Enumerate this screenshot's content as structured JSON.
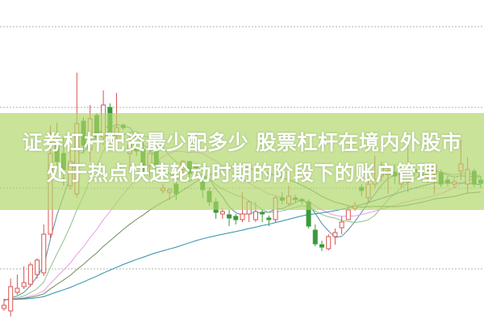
{
  "title": {
    "line1": "证券杠杆配资最少配多少 股票杠杆在境内外股市",
    "line2": "处于热点快速轮动时期的阶段下的账户管理"
  },
  "colors": {
    "up": "#d9534f",
    "down": "#3a9a3a",
    "banner": "#afd669",
    "grid": "#b0b0b0",
    "ma": [
      "#5a8fa0",
      "#8fc08f",
      "#e8a0e0",
      "#6f8f5a",
      "#2f8fa8"
    ]
  },
  "chart_data": {
    "type": "candlestick",
    "title": "",
    "xlabel": "",
    "ylabel": "",
    "ylim": [
      0.33,
      4.33
    ],
    "grid": true,
    "gridlines": [
      1,
      2,
      3,
      4
    ],
    "candles": [
      [
        0.51,
        0.55,
        0.63,
        0.48
      ],
      [
        0.48,
        0.78,
        0.88,
        0.41
      ],
      [
        0.71,
        0.76,
        0.93,
        0.68
      ],
      [
        0.78,
        0.83,
        1.03,
        0.75
      ],
      [
        0.81,
        1.05,
        1.08,
        0.78
      ],
      [
        0.93,
        1.11,
        1.13,
        0.88
      ],
      [
        0.95,
        1.43,
        1.55,
        0.91
      ],
      [
        1.43,
        2.43,
        2.78,
        1.38
      ],
      [
        2.53,
        2.33,
        2.81,
        2.26
      ],
      [
        2.43,
        2.23,
        2.63,
        2.03
      ],
      [
        2.03,
        2.33,
        2.48,
        1.98
      ],
      [
        1.93,
        2.8,
        3.43,
        1.88
      ],
      [
        2.83,
        2.53,
        2.88,
        2.43
      ],
      [
        2.48,
        2.86,
        3.03,
        2.33
      ],
      [
        2.9,
        2.63,
        2.93,
        2.58
      ],
      [
        2.63,
        3.03,
        3.21,
        2.53
      ],
      [
        3.0,
        2.68,
        3.05,
        2.63
      ],
      [
        2.65,
        2.75,
        3.18,
        2.58
      ],
      [
        2.78,
        2.75,
        2.8,
        2.72
      ],
      [
        2.43,
        2.53,
        2.68,
        2.18
      ],
      [
        2.5,
        2.46,
        2.55,
        2.4
      ],
      [
        2.48,
        2.21,
        2.58,
        2.18
      ],
      [
        2.28,
        2.43,
        2.55,
        2.13
      ],
      [
        2.48,
        2.25,
        2.51,
        2.21
      ],
      [
        1.97,
        2.0,
        2.05,
        1.93
      ],
      [
        1.95,
        1.98,
        2.0,
        1.85
      ],
      [
        2.05,
        1.93,
        2.09,
        1.85
      ],
      [
        2.23,
        2.33,
        2.35,
        2.18
      ],
      [
        2.33,
        2.18,
        2.33,
        2.13
      ],
      [
        2.28,
        2.25,
        2.3,
        2.2
      ],
      [
        2.08,
        1.98,
        2.13,
        1.88
      ],
      [
        1.96,
        1.83,
        2.01,
        1.78
      ],
      [
        1.83,
        1.7,
        1.88,
        1.62
      ],
      [
        1.68,
        1.71,
        1.75,
        1.62
      ],
      [
        1.67,
        1.63,
        1.73,
        1.53
      ],
      [
        1.65,
        1.61,
        1.68,
        1.55
      ],
      [
        1.61,
        1.68,
        1.95,
        1.58
      ],
      [
        1.68,
        1.83,
        1.85,
        1.58
      ],
      [
        1.61,
        1.71,
        1.83,
        1.58
      ],
      [
        1.7,
        1.68,
        1.73,
        1.58
      ],
      [
        1.63,
        1.61,
        1.66,
        1.53
      ],
      [
        1.61,
        1.88,
        1.9,
        1.58
      ],
      [
        1.88,
        1.85,
        1.95,
        1.8
      ],
      [
        1.81,
        1.9,
        2.03,
        1.78
      ],
      [
        1.88,
        1.86,
        1.92,
        1.82
      ],
      [
        1.86,
        1.84,
        1.88,
        1.8
      ],
      [
        1.83,
        1.53,
        1.86,
        1.5
      ],
      [
        1.48,
        1.31,
        1.55,
        1.28
      ],
      [
        1.3,
        1.27,
        1.35,
        1.22
      ],
      [
        1.25,
        1.4,
        1.43,
        1.23
      ],
      [
        1.4,
        1.45,
        1.5,
        1.3
      ],
      [
        1.51,
        1.58,
        1.65,
        1.43
      ],
      [
        1.61,
        1.73,
        1.78,
        1.61
      ],
      [
        1.75,
        1.78,
        1.83,
        1.72
      ],
      [
        2.01,
        1.97,
        2.05,
        1.9
      ],
      [
        1.88,
        2.05,
        2.13,
        1.83
      ],
      [
        2.05,
        2.1,
        2.4,
        2.0
      ],
      [
        2.15,
        2.28,
        2.33,
        2.08
      ],
      [
        2.17,
        2.21,
        2.25,
        1.93
      ],
      [
        2.2,
        2.15,
        2.3,
        2.05
      ],
      [
        2.05,
        2.18,
        2.23,
        2.01
      ],
      [
        2.08,
        2.23,
        2.55,
        1.95
      ],
      [
        2.23,
        2.21,
        2.25,
        2.15
      ],
      [
        2.13,
        2.21,
        2.23,
        2.1
      ],
      [
        2.13,
        2.21,
        2.23,
        2.06
      ],
      [
        2.18,
        2.28,
        2.28,
        1.93
      ],
      [
        2.19,
        2.05,
        2.23,
        2.01
      ],
      [
        2.1,
        2.06,
        2.15,
        2.02
      ],
      [
        2.05,
        2.08,
        2.12,
        2.0
      ],
      [
        2.21,
        2.3,
        2.6,
        2.1
      ],
      [
        2.05,
        2.23,
        2.38,
        1.93
      ],
      [
        2.21,
        2.05,
        2.24,
        2.01
      ],
      [
        2.1,
        2.06,
        2.15,
        2.0
      ]
    ]
  }
}
